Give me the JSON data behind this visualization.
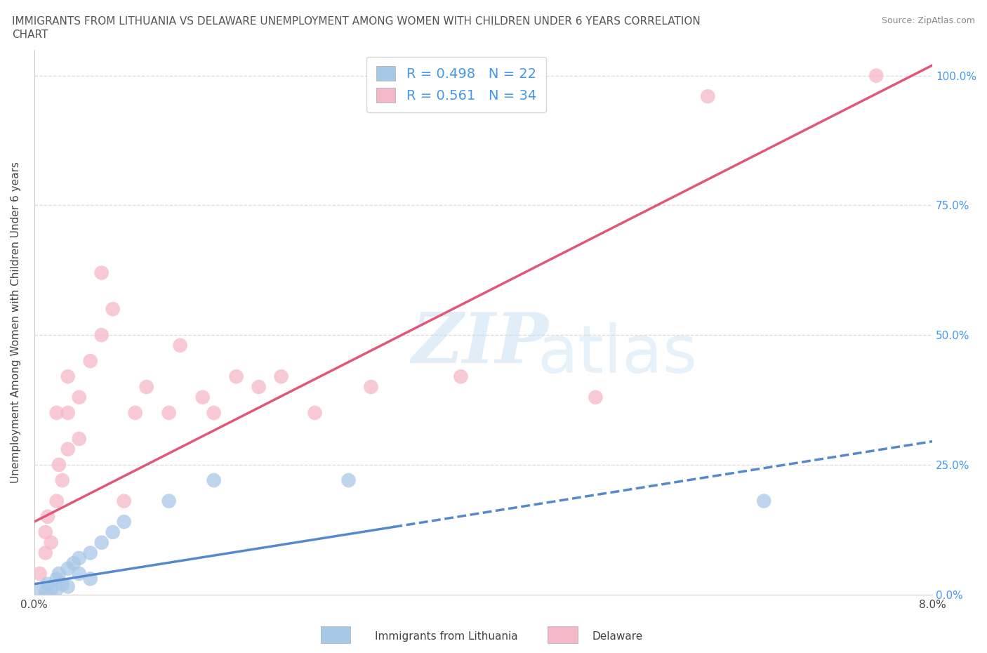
{
  "title_line1": "IMMIGRANTS FROM LITHUANIA VS DELAWARE UNEMPLOYMENT AMONG WOMEN WITH CHILDREN UNDER 6 YEARS CORRELATION",
  "title_line2": "CHART",
  "source": "Source: ZipAtlas.com",
  "ylabel": "Unemployment Among Women with Children Under 6 years",
  "series1_label": "Immigrants from Lithuania",
  "series2_label": "Delaware",
  "series1_color": "#a8c8e8",
  "series2_color": "#f5b8c8",
  "series1_line_color": "#5588cc",
  "series2_line_color": "#e05878",
  "series1_R": 0.498,
  "series1_N": 22,
  "series2_R": 0.561,
  "series2_N": 34,
  "xmin": 0.0,
  "xmax": 0.08,
  "ymin": 0.0,
  "ymax": 1.05,
  "yticks": [
    0.0,
    0.25,
    0.5,
    0.75,
    1.0
  ],
  "ytick_labels": [
    "0.0%",
    "25.0%",
    "50.0%",
    "75.0%",
    "100.0%"
  ],
  "xticks": [
    0.0,
    0.01,
    0.02,
    0.03,
    0.04,
    0.05,
    0.06,
    0.07,
    0.08
  ],
  "xtick_labels": [
    "0.0%",
    "",
    "",
    "",
    "",
    "",
    "",
    "",
    "8.0%"
  ],
  "watermark_zip": "ZIP",
  "watermark_atlas": "atlas",
  "background_color": "#ffffff",
  "grid_color": "#dddddd",
  "text_color": "#444444",
  "title_color": "#555555",
  "series1_x": [
    0.0005,
    0.001,
    0.0012,
    0.0015,
    0.002,
    0.002,
    0.0022,
    0.0025,
    0.003,
    0.003,
    0.0035,
    0.004,
    0.004,
    0.005,
    0.005,
    0.006,
    0.007,
    0.008,
    0.012,
    0.016,
    0.028,
    0.065
  ],
  "series1_y": [
    0.01,
    0.005,
    0.02,
    0.01,
    0.03,
    0.01,
    0.04,
    0.02,
    0.05,
    0.015,
    0.06,
    0.07,
    0.04,
    0.08,
    0.03,
    0.1,
    0.12,
    0.14,
    0.18,
    0.22,
    0.22,
    0.18
  ],
  "series2_x": [
    0.0005,
    0.001,
    0.001,
    0.0012,
    0.0015,
    0.002,
    0.002,
    0.0022,
    0.0025,
    0.003,
    0.003,
    0.003,
    0.004,
    0.004,
    0.005,
    0.006,
    0.006,
    0.007,
    0.008,
    0.009,
    0.01,
    0.012,
    0.013,
    0.015,
    0.016,
    0.018,
    0.02,
    0.022,
    0.025,
    0.03,
    0.038,
    0.05,
    0.06,
    0.075
  ],
  "series2_y": [
    0.04,
    0.08,
    0.12,
    0.15,
    0.1,
    0.18,
    0.35,
    0.25,
    0.22,
    0.28,
    0.35,
    0.42,
    0.3,
    0.38,
    0.45,
    0.5,
    0.62,
    0.55,
    0.18,
    0.35,
    0.4,
    0.35,
    0.48,
    0.38,
    0.35,
    0.42,
    0.4,
    0.42,
    0.35,
    0.4,
    0.42,
    0.38,
    0.96,
    1.0
  ],
  "line1_x0": 0.0,
  "line1_x1": 0.08,
  "line1_y0": 0.02,
  "line1_y1": 0.295,
  "line1_solid_end": 0.032,
  "line2_x0": 0.0,
  "line2_x1": 0.08,
  "line2_y0": 0.14,
  "line2_y1": 1.02
}
